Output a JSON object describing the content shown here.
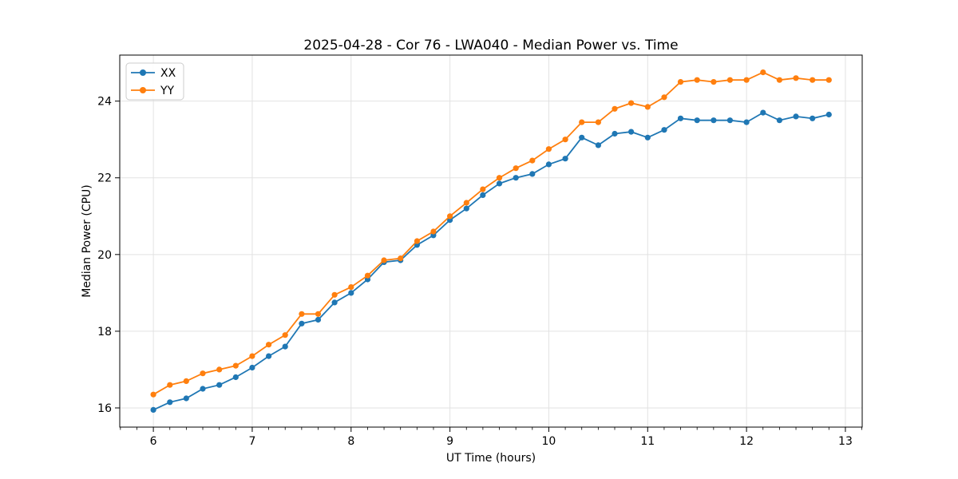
{
  "chart_data": {
    "type": "line",
    "title": "2025-04-28 - Cor 76 - LWA040 - Median Power vs. Time",
    "xlabel": "UT Time (hours)",
    "ylabel": "Median Power (CPU)",
    "xlim": [
      5.66,
      13.17
    ],
    "ylim": [
      15.5,
      25.2
    ],
    "xticks": [
      6,
      7,
      8,
      9,
      10,
      11,
      12,
      13
    ],
    "yticks": [
      16,
      18,
      20,
      22,
      24
    ],
    "x_minor_step": 0.1666667,
    "grid": true,
    "grid_color": "#e2e2e2",
    "legend_position": "top-left",
    "background": "#ffffff",
    "x": [
      6.0,
      6.167,
      6.333,
      6.5,
      6.667,
      6.833,
      7.0,
      7.167,
      7.333,
      7.5,
      7.667,
      7.833,
      8.0,
      8.167,
      8.333,
      8.5,
      8.667,
      8.833,
      9.0,
      9.167,
      9.333,
      9.5,
      9.667,
      9.833,
      10.0,
      10.167,
      10.333,
      10.5,
      10.667,
      10.833,
      11.0,
      11.167,
      11.333,
      11.5,
      11.667,
      11.833,
      12.0,
      12.167,
      12.333,
      12.5,
      12.667,
      12.833
    ],
    "series": [
      {
        "name": "XX",
        "color": "#1f77b4",
        "values": [
          15.95,
          16.15,
          16.25,
          16.5,
          16.6,
          16.8,
          17.05,
          17.35,
          17.6,
          18.2,
          18.3,
          18.75,
          19.0,
          19.35,
          19.8,
          19.85,
          20.25,
          20.5,
          20.9,
          21.2,
          21.55,
          21.85,
          22.0,
          22.1,
          22.35,
          22.5,
          23.05,
          22.85,
          23.15,
          23.2,
          23.05,
          23.25,
          23.55,
          23.5,
          23.5,
          23.5,
          23.45,
          23.7,
          23.5,
          23.6,
          23.55,
          23.65
        ]
      },
      {
        "name": "YY",
        "color": "#ff7f0e",
        "values": [
          16.35,
          16.6,
          16.7,
          16.9,
          17.0,
          17.1,
          17.35,
          17.65,
          17.9,
          18.45,
          18.45,
          18.95,
          19.15,
          19.45,
          19.85,
          19.9,
          20.35,
          20.6,
          21.0,
          21.35,
          21.7,
          22.0,
          22.25,
          22.45,
          22.75,
          23.0,
          23.45,
          23.45,
          23.8,
          23.95,
          23.85,
          24.1,
          24.5,
          24.55,
          24.5,
          24.55,
          24.55,
          24.75,
          24.55,
          24.6,
          24.55,
          24.55
        ]
      }
    ]
  }
}
